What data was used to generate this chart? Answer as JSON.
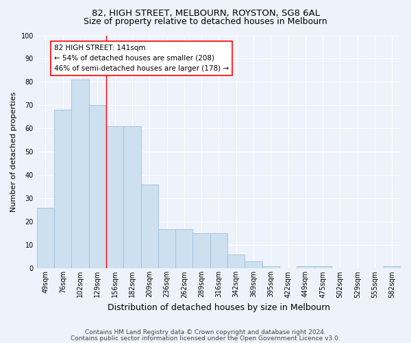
{
  "title1": "82, HIGH STREET, MELBOURN, ROYSTON, SG8 6AL",
  "title2": "Size of property relative to detached houses in Melbourn",
  "xlabel": "Distribution of detached houses by size in Melbourn",
  "ylabel": "Number of detached properties",
  "categories": [
    "49sqm",
    "76sqm",
    "102sqm",
    "129sqm",
    "156sqm",
    "182sqm",
    "209sqm",
    "236sqm",
    "262sqm",
    "289sqm",
    "316sqm",
    "342sqm",
    "369sqm",
    "395sqm",
    "422sqm",
    "449sqm",
    "475sqm",
    "502sqm",
    "529sqm",
    "555sqm",
    "582sqm"
  ],
  "values": [
    26,
    68,
    81,
    70,
    61,
    61,
    36,
    17,
    17,
    15,
    15,
    6,
    3,
    1,
    0,
    1,
    1,
    0,
    0,
    0,
    1
  ],
  "bar_color": "#cce0f0",
  "bar_edge_color": "#a0bfd8",
  "bar_edge_width": 0.6,
  "annot_title": "82 HIGH STREET: 141sqm",
  "annot_line1": "← 54% of detached houses are smaller (208)",
  "annot_line2": "46% of semi-detached houses are larger (178) →",
  "annot_box_color": "white",
  "annot_box_edge_color": "red",
  "vline_color": "red",
  "vline_x": 3.5,
  "ylim": [
    0,
    100
  ],
  "yticks": [
    0,
    10,
    20,
    30,
    40,
    50,
    60,
    70,
    80,
    90,
    100
  ],
  "footnote1": "Contains HM Land Registry data © Crown copyright and database right 2024.",
  "footnote2": "Contains public sector information licensed under the Open Government Licence v3.0.",
  "bg_color": "#eef2fa",
  "plot_bg_color": "#eef2fa",
  "grid_color": "#ffffff",
  "title1_fontsize": 9.5,
  "title2_fontsize": 9,
  "xlabel_fontsize": 9,
  "ylabel_fontsize": 8,
  "tick_fontsize": 7,
  "annot_fontsize": 7.5,
  "footnote_fontsize": 6.5
}
